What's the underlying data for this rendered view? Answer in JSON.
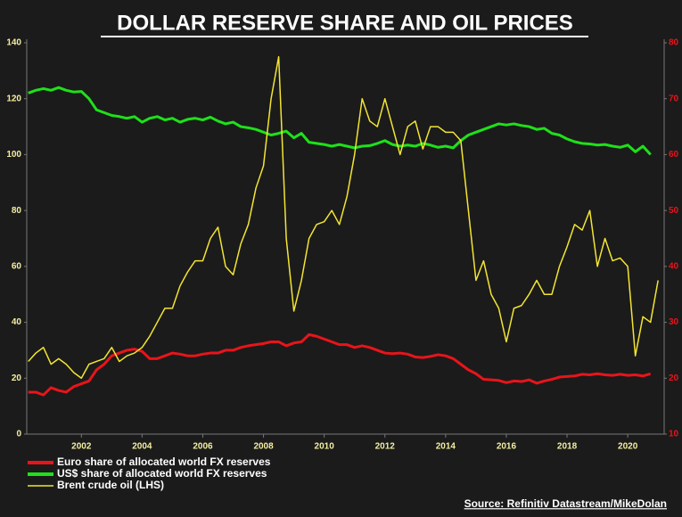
{
  "chart_data": {
    "type": "line",
    "title": "DOLLAR RESERVE SHARE AND OIL PRICES",
    "source": "Source: Refinitiv Datastream/MikeDolan",
    "x": [
      2000.25,
      2000.5,
      2000.75,
      2001,
      2001.25,
      2001.5,
      2001.75,
      2002,
      2002.25,
      2002.5,
      2002.75,
      2003,
      2003.25,
      2003.5,
      2003.75,
      2004,
      2004.25,
      2004.5,
      2004.75,
      2005,
      2005.25,
      2005.5,
      2005.75,
      2006,
      2006.25,
      2006.5,
      2006.75,
      2007,
      2007.25,
      2007.5,
      2007.75,
      2008,
      2008.25,
      2008.5,
      2008.75,
      2009,
      2009.25,
      2009.5,
      2009.75,
      2010,
      2010.25,
      2010.5,
      2010.75,
      2011,
      2011.25,
      2011.5,
      2011.75,
      2012,
      2012.25,
      2012.5,
      2012.75,
      2013,
      2013.25,
      2013.5,
      2013.75,
      2014,
      2014.25,
      2014.5,
      2014.75,
      2015,
      2015.25,
      2015.5,
      2015.75,
      2016,
      2016.25,
      2016.5,
      2016.75,
      2017,
      2017.25,
      2017.5,
      2017.75,
      2018,
      2018.25,
      2018.5,
      2018.75,
      2019,
      2019.25,
      2019.5,
      2019.75,
      2020,
      2020.25,
      2020.5,
      2020.75,
      2021
    ],
    "xlim": [
      2000.2,
      2021.2
    ],
    "xticks": [
      2002,
      2004,
      2006,
      2008,
      2010,
      2012,
      2014,
      2016,
      2018,
      2020
    ],
    "ylim": [
      0,
      140
    ],
    "yticks": [
      0,
      20,
      40,
      60,
      80,
      100,
      120,
      140
    ],
    "y2lim": [
      10,
      80
    ],
    "y2ticks": [
      10,
      20,
      30,
      40,
      50,
      60,
      70,
      80
    ],
    "legend": "bottom-left",
    "series": [
      {
        "name": "Euro share of allocated world FX reserves",
        "color": "#e8141b",
        "axis": "y2",
        "values": [
          17.5,
          17.5,
          17,
          18.3,
          17.8,
          17.5,
          18.5,
          19,
          19.5,
          21.5,
          22.5,
          24,
          24.5,
          25,
          25.2,
          24.8,
          23.5,
          23.5,
          24,
          24.5,
          24.3,
          24,
          24,
          24.3,
          24.5,
          24.5,
          25,
          25,
          25.5,
          25.8,
          26,
          26.2,
          26.5,
          26.5,
          25.8,
          26.3,
          26.5,
          27.8,
          27.5,
          27,
          26.5,
          26,
          26,
          25.5,
          25.8,
          25.5,
          25,
          24.5,
          24.4,
          24.5,
          24.3,
          23.8,
          23.7,
          23.9,
          24.2,
          24,
          23.5,
          22.5,
          21.5,
          20.8,
          19.8,
          19.7,
          19.6,
          19.2,
          19.5,
          19.4,
          19.7,
          19.1,
          19.5,
          19.8,
          20.2,
          20.3,
          20.4,
          20.7,
          20.6,
          20.8,
          20.6,
          20.5,
          20.7,
          20.5,
          20.6,
          20.4,
          20.8,
          null
        ]
      },
      {
        "name": "US$ share of allocated world FX reserves",
        "color": "#1fe01a",
        "axis": "y2",
        "values": [
          71,
          71.5,
          71.8,
          71.5,
          72,
          71.5,
          71.2,
          71.3,
          70,
          68,
          67.5,
          67,
          66.8,
          66.5,
          66.8,
          65.8,
          66.5,
          66.8,
          66.2,
          66.5,
          65.8,
          66.3,
          66.5,
          66.2,
          66.7,
          66,
          65.5,
          65.8,
          65,
          64.8,
          64.5,
          64,
          63.5,
          63.8,
          64.2,
          63,
          63.8,
          62.2,
          62,
          61.8,
          61.5,
          61.8,
          61.5,
          61.2,
          61.5,
          61.6,
          62,
          62.5,
          61.8,
          61.5,
          61.7,
          61.5,
          62,
          61.7,
          61.3,
          61.5,
          61.2,
          62.5,
          63.5,
          64,
          64.5,
          65,
          65.5,
          65.3,
          65.5,
          65.2,
          65,
          64.5,
          64.7,
          63.8,
          63.5,
          62.8,
          62.3,
          62,
          61.9,
          61.7,
          61.8,
          61.5,
          61.3,
          61.7,
          60.5,
          61.5,
          60,
          null
        ]
      },
      {
        "name": "Brent crude oil (LHS)",
        "color": "#f2e532",
        "values": [
          26,
          29,
          31,
          25,
          27,
          25,
          22,
          20,
          25,
          26,
          27,
          31,
          26,
          28,
          29,
          31,
          35,
          40,
          45,
          45,
          53,
          58,
          62,
          62,
          70,
          74,
          60,
          57,
          68,
          75,
          88,
          96,
          120,
          135,
          70,
          44,
          55,
          70,
          75,
          76,
          80,
          75,
          85,
          100,
          120,
          112,
          110,
          120,
          110,
          100,
          110,
          112,
          102,
          110,
          110,
          108,
          108,
          105,
          80,
          55,
          62,
          50,
          45,
          33,
          45,
          46,
          50,
          55,
          50,
          50,
          60,
          67,
          75,
          73,
          80,
          60,
          70,
          62,
          63,
          60,
          28,
          42,
          40,
          55
        ]
      }
    ]
  }
}
